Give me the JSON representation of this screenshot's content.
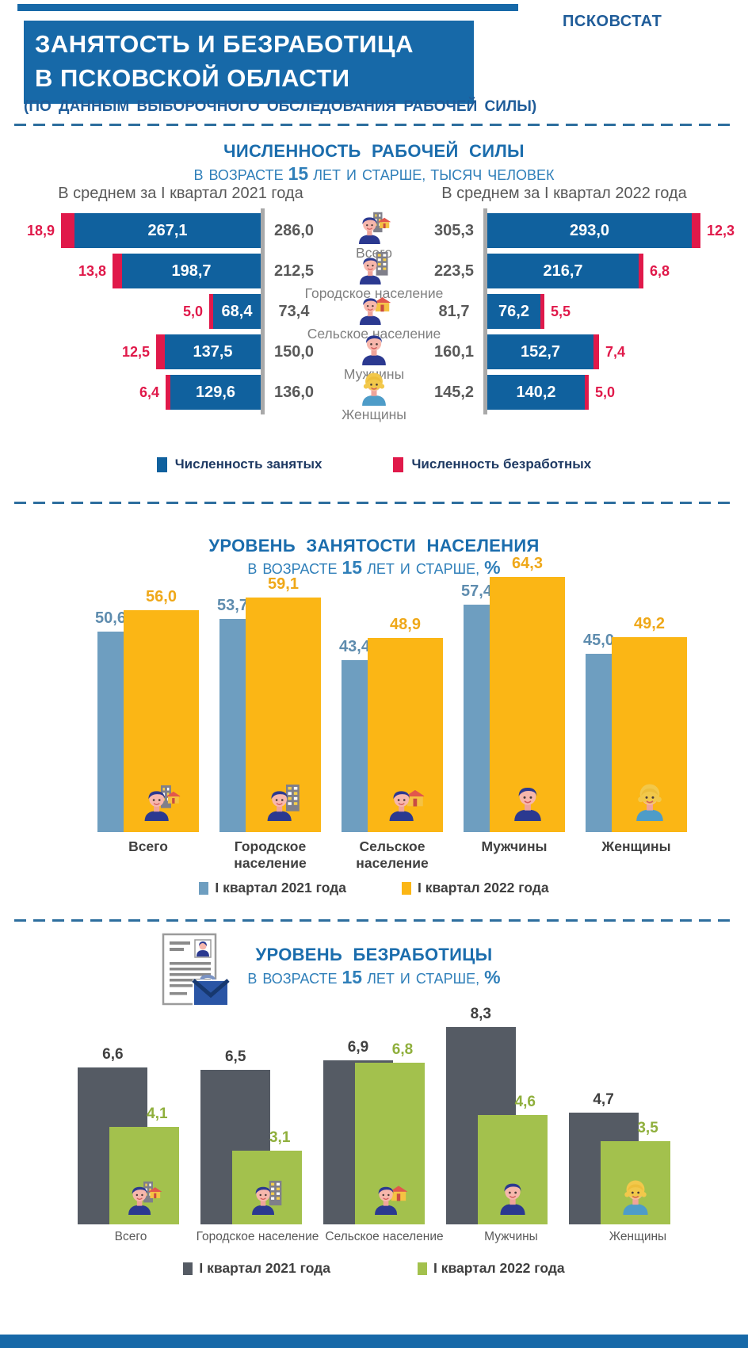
{
  "brand": "ПСКОВСТАТ",
  "header": {
    "title_line1": "ЗАНЯТОСТЬ И БЕЗРАБОТИЦА",
    "title_line2": "В ПСКОВСКОЙ ОБЛАСТИ",
    "subtitle": "(ПО ДАННЫМ ВЫБОРОЧНОГО ОБСЛЕДОВАНИЯ РАБОЧЕЙ СИЛЫ)"
  },
  "colors": {
    "header_blue": "#1769A8",
    "brand_text": "#1F5C99",
    "section_title_blue": "#1B6DAD",
    "section_subtitle_blue": "#2F7FB9",
    "dash_line": "#2D6E9E",
    "employed_blue": "#10619E",
    "unemployed_red": "#E0194A",
    "neutral_gray": "#595959",
    "axis_gray": "#A9A9A9",
    "q1_2021_steel_blue": "#6E9EC0",
    "q1_2022_yellow": "#FBB615",
    "q1_2021_dark_gray": "#555B64",
    "q1_2022_green": "#A3C14D"
  },
  "chart_data": [
    {
      "id": "labor_force_size",
      "type": "tornado-bar",
      "title": "ЧИСЛЕННОСТЬ РАБОЧЕЙ СИЛЫ",
      "subtitle": {
        "prefix": "В ВОЗРАСТЕ",
        "num": "15",
        "mid": "ЛЕТ И СТАРШЕ,",
        "unit": "ТЫСЯЧ ЧЕЛОВЕК"
      },
      "left_header": "В среднем за I квартал 2021 года",
      "right_header": "В среднем за I квартал 2022 года",
      "categories": [
        "Всего",
        "Городское население",
        "Сельское население",
        "Мужчины",
        "Женщины"
      ],
      "icons": [
        "person-city-house",
        "person-city",
        "person-house",
        "man",
        "woman"
      ],
      "unit": "тысяч человек",
      "q1_2021": {
        "total": [
          "286,0",
          "212,5",
          "73,4",
          "150,0",
          "136,0"
        ],
        "employed": [
          "267,1",
          "198,7",
          "68,4",
          "137,5",
          "129,6"
        ],
        "unemployed": [
          "18,9",
          "13,8",
          "5,0",
          "12,5",
          "6,4"
        ]
      },
      "q1_2022": {
        "total": [
          "305,3",
          "223,5",
          "81,7",
          "160,1",
          "145,2"
        ],
        "employed": [
          "293,0",
          "216,7",
          "76,2",
          "152,7",
          "140,2"
        ],
        "unemployed": [
          "12,3",
          "6,8",
          "5,5",
          "7,4",
          "5,0"
        ]
      },
      "legend": [
        {
          "label": "Численность занятых",
          "color": "#10619E"
        },
        {
          "label": "Численность безработных",
          "color": "#E0194A"
        }
      ]
    },
    {
      "id": "employment_rate",
      "type": "bar",
      "title": "УРОВЕНЬ ЗАНЯТОСТИ НАСЕЛЕНИЯ",
      "subtitle": {
        "prefix": "В ВОЗРАСТЕ",
        "num": "15",
        "mid": "ЛЕТ И СТАРШЕ,",
        "unit": "%"
      },
      "categories": [
        "Всего",
        "Городское население",
        "Сельское население",
        "Мужчины",
        "Женщины"
      ],
      "icons": [
        "person-city-house",
        "person-city",
        "person-house",
        "man",
        "woman"
      ],
      "ylabel": "%",
      "ylim": [
        0,
        70
      ],
      "series": [
        {
          "name": "I квартал 2021 года",
          "color": "#6E9EC0",
          "label_color": "#5E8CAE",
          "values": [
            "50,6",
            "53,7",
            "43,4",
            "57,4",
            "45,0"
          ]
        },
        {
          "name": "I квартал 2022 года",
          "color": "#FBB615",
          "label_color": "#EFA819",
          "values": [
            "56,0",
            "59,1",
            "48,9",
            "64,3",
            "49,2"
          ]
        }
      ]
    },
    {
      "id": "unemployment_rate",
      "type": "bar",
      "title": "УРОВЕНЬ БЕЗРАБОТИЦЫ",
      "subtitle": {
        "prefix": "В ВОЗРАСТЕ",
        "num": "15",
        "mid": "ЛЕТ И СТАРШЕ,",
        "unit": "%"
      },
      "categories": [
        "Всего",
        "Городское население",
        "Сельское население",
        "Мужчины",
        "Женщины"
      ],
      "icons": [
        "person-city-house",
        "person-city",
        "person-house",
        "man",
        "woman"
      ],
      "ylabel": "%",
      "ylim": [
        0,
        9
      ],
      "series": [
        {
          "name": "I квартал 2021 года",
          "color": "#555B64",
          "label_color": "#404040",
          "values": [
            "6,6",
            "6,5",
            "6,9",
            "8,3",
            "4,7"
          ]
        },
        {
          "name": "I квартал 2022 года",
          "color": "#A3C14D",
          "label_color": "#8FAF3C",
          "values": [
            "4,1",
            "3,1",
            "6,8",
            "4,6",
            "3,5"
          ]
        }
      ]
    }
  ]
}
